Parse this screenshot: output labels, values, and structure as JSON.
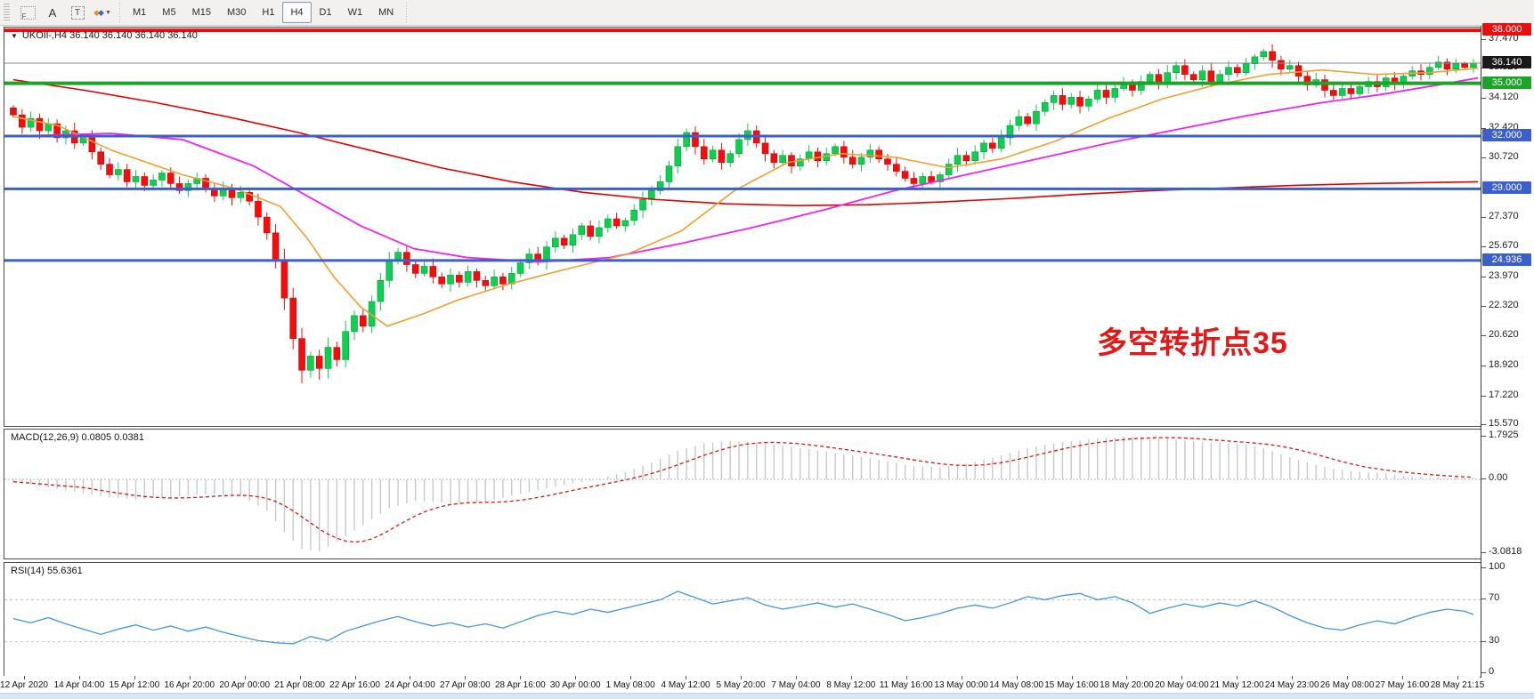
{
  "toolbar": {
    "icons": [
      {
        "name": "field-grid-icon",
        "glyph": "F"
      },
      {
        "name": "text-label-icon",
        "glyph": "A"
      },
      {
        "name": "text-box-icon",
        "glyph": "T"
      },
      {
        "name": "arrange-icon",
        "glyph": "diamonds"
      }
    ],
    "timeframes": [
      "M1",
      "M5",
      "M15",
      "M30",
      "H1",
      "H4",
      "D1",
      "W1",
      "MN"
    ],
    "active_timeframe": "H4"
  },
  "chart": {
    "title": "UKOIl-,H4  36.140 36.140 36.140 36.140",
    "annotation": {
      "text": "多空转折点35",
      "color": "#e51717"
    }
  },
  "chart_data": {
    "type": "candlestick",
    "symbol": "UKOIl-",
    "timeframe": "H4",
    "ohlc_current": "36.140 36.140 36.140 36.140",
    "current_price": 36.14,
    "price_axis": {
      "ticks": [
        "37.470",
        "35.820",
        "34.120",
        "32.420",
        "30.720",
        "27.370",
        "25.670",
        "23.970",
        "22.320",
        "20.620",
        "18.920",
        "17.220",
        "15.570"
      ],
      "special": [
        {
          "value": "38.000",
          "price": 38.0,
          "bg": "#ea0e0e"
        },
        {
          "value": "36.140",
          "price": 36.14,
          "bg": "#1a1a1a"
        },
        {
          "value": "35.000",
          "price": 35.0,
          "bg": "#1ca428"
        },
        {
          "value": "32.000",
          "price": 32.0,
          "bg": "#3c5fce"
        },
        {
          "value": "29.000",
          "price": 29.0,
          "bg": "#3c5fce"
        },
        {
          "value": "24.936",
          "price": 24.936,
          "bg": "#3c5fce"
        }
      ]
    },
    "hlines": [
      {
        "price": 38.0,
        "color": "#ea0e0e",
        "width": 4
      },
      {
        "price": 35.0,
        "color": "#1ca428",
        "width": 4
      },
      {
        "price": 32.0,
        "color": "#3c5fce",
        "width": 3
      },
      {
        "price": 29.0,
        "color": "#3c5fce",
        "width": 3
      },
      {
        "price": 24.936,
        "color": "#3c5fce",
        "width": 3
      }
    ],
    "candles": {
      "first_open": 33.6,
      "closes": [
        33.2,
        32.5,
        33.0,
        32.3,
        32.7,
        31.9,
        32.3,
        31.6,
        31.9,
        31.1,
        30.4,
        29.8,
        30.1,
        29.4,
        29.7,
        29.2,
        29.5,
        29.9,
        29.3,
        28.9,
        29.3,
        29.6,
        29.0,
        28.6,
        29.0,
        28.5,
        28.8,
        28.3,
        27.4,
        26.5,
        24.9,
        22.8,
        20.5,
        18.7,
        19.5,
        18.8,
        20.0,
        19.3,
        20.9,
        21.8,
        21.2,
        22.6,
        23.8,
        24.9,
        25.4,
        24.7,
        24.2,
        24.6,
        24.0,
        23.6,
        24.1,
        23.7,
        24.3,
        23.8,
        23.5,
        24.0,
        23.6,
        24.2,
        24.8,
        25.3,
        24.9,
        25.7,
        26.2,
        25.8,
        26.4,
        26.9,
        26.3,
        26.8,
        27.3,
        26.9,
        27.2,
        27.8,
        28.4,
        28.9,
        29.4,
        30.3,
        31.4,
        32.2,
        31.4,
        30.7,
        31.2,
        30.5,
        31.0,
        31.8,
        32.3,
        31.6,
        31.0,
        30.5,
        30.9,
        30.3,
        30.7,
        31.1,
        30.6,
        31.0,
        31.4,
        30.8,
        30.4,
        30.8,
        31.2,
        30.7,
        30.4,
        30.0,
        29.6,
        29.3,
        29.7,
        29.4,
        29.8,
        30.4,
        30.9,
        30.6,
        31.1,
        31.6,
        31.3,
        31.9,
        32.6,
        33.1,
        32.7,
        33.4,
        33.9,
        34.3,
        33.8,
        34.2,
        33.7,
        34.1,
        34.6,
        34.2,
        34.7,
        35.0,
        34.6,
        35.1,
        35.5,
        35.0,
        35.6,
        36.0,
        35.5,
        35.2,
        35.7,
        35.1,
        35.5,
        35.9,
        35.6,
        36.1,
        36.5,
        36.8,
        36.3,
        35.8,
        36.0,
        35.4,
        34.9,
        35.2,
        34.6,
        34.3,
        34.7,
        34.4,
        34.8,
        35.1,
        34.8,
        35.3,
        35.0,
        35.4,
        35.7,
        35.5,
        35.9,
        36.2,
        35.8,
        36.1,
        35.9,
        36.14
      ],
      "low_overrides": {
        "33": 17.95,
        "35": 18.15
      },
      "high_overrides": {
        "143": 36.95
      },
      "up_color": "#0fcf52",
      "up_border": "#089a3c",
      "down_color": "#f40d0d",
      "down_border": "#c40808"
    },
    "moving_averages": [
      {
        "name": "ma-slow-red",
        "color": "#e00000",
        "width": 1.6,
        "points": [
          [
            10,
            35.2
          ],
          [
            90,
            34.6
          ],
          [
            170,
            33.9
          ],
          [
            250,
            33.1
          ],
          [
            330,
            32.2
          ],
          [
            410,
            31.2
          ],
          [
            490,
            30.2
          ],
          [
            570,
            29.4
          ],
          [
            650,
            28.8
          ],
          [
            730,
            28.4
          ],
          [
            810,
            28.15
          ],
          [
            890,
            28.05
          ],
          [
            970,
            28.1
          ],
          [
            1050,
            28.25
          ],
          [
            1130,
            28.45
          ],
          [
            1210,
            28.7
          ],
          [
            1290,
            28.9
          ],
          [
            1370,
            29.05
          ],
          [
            1450,
            29.2
          ],
          [
            1530,
            29.3
          ],
          [
            1655,
            29.4
          ]
        ]
      },
      {
        "name": "ma-mid-magenta",
        "color": "#f321f3",
        "width": 1.8,
        "points": [
          [
            10,
            32.0
          ],
          [
            120,
            32.15
          ],
          [
            200,
            31.8
          ],
          [
            280,
            30.3
          ],
          [
            340,
            28.6
          ],
          [
            400,
            26.9
          ],
          [
            460,
            25.6
          ],
          [
            520,
            25.1
          ],
          [
            600,
            24.85
          ],
          [
            680,
            25.1
          ],
          [
            760,
            25.9
          ],
          [
            840,
            26.8
          ],
          [
            920,
            27.8
          ],
          [
            1000,
            28.9
          ],
          [
            1080,
            29.8
          ],
          [
            1160,
            30.7
          ],
          [
            1240,
            31.6
          ],
          [
            1320,
            32.4
          ],
          [
            1400,
            33.2
          ],
          [
            1480,
            33.9
          ],
          [
            1545,
            34.35
          ],
          [
            1610,
            34.9
          ],
          [
            1655,
            35.3
          ]
        ]
      },
      {
        "name": "ma-fast-orange",
        "color": "#f0a030",
        "width": 1.6,
        "points": [
          [
            10,
            33.1
          ],
          [
            60,
            32.6
          ],
          [
            120,
            31.2
          ],
          [
            200,
            29.8
          ],
          [
            260,
            29.0
          ],
          [
            310,
            28.0
          ],
          [
            340,
            26.2
          ],
          [
            370,
            24.0
          ],
          [
            400,
            22.3
          ],
          [
            430,
            21.2
          ],
          [
            470,
            21.9
          ],
          [
            510,
            22.7
          ],
          [
            560,
            23.5
          ],
          [
            620,
            24.3
          ],
          [
            700,
            25.3
          ],
          [
            760,
            26.6
          ],
          [
            820,
            28.9
          ],
          [
            880,
            30.5
          ],
          [
            940,
            31.0
          ],
          [
            1000,
            30.8
          ],
          [
            1060,
            30.2
          ],
          [
            1120,
            30.7
          ],
          [
            1180,
            31.7
          ],
          [
            1240,
            33.0
          ],
          [
            1300,
            34.1
          ],
          [
            1360,
            34.9
          ],
          [
            1420,
            35.5
          ],
          [
            1480,
            35.75
          ],
          [
            1540,
            35.5
          ],
          [
            1600,
            35.6
          ],
          [
            1655,
            35.85
          ]
        ]
      }
    ],
    "macd": {
      "label": "MACD(12,26,9) 0.0805 0.0381",
      "values_text": [
        "0.0805",
        "0.0381"
      ],
      "axis": [
        "1.7925",
        "0.00",
        "-3.0818"
      ],
      "bar_color": "#c9c9c9",
      "signal_color": "#e01414",
      "anchors": [
        [
          0,
          -0.1
        ],
        [
          5,
          -0.4
        ],
        [
          10,
          -0.7
        ],
        [
          14,
          -0.85
        ],
        [
          19,
          -0.7
        ],
        [
          23,
          -0.6
        ],
        [
          26,
          -0.7
        ],
        [
          29,
          -1.3
        ],
        [
          31,
          -2.2
        ],
        [
          33,
          -2.9
        ],
        [
          35,
          -3.0
        ],
        [
          37,
          -2.6
        ],
        [
          40,
          -1.9
        ],
        [
          43,
          -1.2
        ],
        [
          46,
          -0.9
        ],
        [
          50,
          -1.0
        ],
        [
          54,
          -0.95
        ],
        [
          58,
          -0.6
        ],
        [
          62,
          -0.3
        ],
        [
          66,
          -0.05
        ],
        [
          70,
          0.3
        ],
        [
          73,
          0.7
        ],
        [
          76,
          1.2
        ],
        [
          79,
          1.5
        ],
        [
          82,
          1.6
        ],
        [
          85,
          1.55
        ],
        [
          88,
          1.4
        ],
        [
          92,
          1.2
        ],
        [
          96,
          1.0
        ],
        [
          100,
          0.75
        ],
        [
          103,
          0.55
        ],
        [
          106,
          0.5
        ],
        [
          109,
          0.65
        ],
        [
          112,
          0.9
        ],
        [
          115,
          1.2
        ],
        [
          118,
          1.45
        ],
        [
          121,
          1.6
        ],
        [
          124,
          1.7
        ],
        [
          127,
          1.78
        ],
        [
          130,
          1.75
        ],
        [
          133,
          1.65
        ],
        [
          136,
          1.55
        ],
        [
          139,
          1.5
        ],
        [
          141,
          1.45
        ],
        [
          143,
          1.3
        ],
        [
          145,
          1.05
        ],
        [
          147,
          0.8
        ],
        [
          149,
          0.6
        ],
        [
          151,
          0.45
        ],
        [
          153,
          0.35
        ],
        [
          155,
          0.3
        ],
        [
          157,
          0.25
        ],
        [
          159,
          0.15
        ],
        [
          161,
          0.1
        ],
        [
          163,
          0.07
        ],
        [
          165,
          0.06
        ],
        [
          167,
          0.08
        ]
      ]
    },
    "rsi": {
      "label": "RSI(14) 55.6361",
      "value_text": "55.6361",
      "axis": [
        "100",
        "70",
        "30",
        "0"
      ],
      "levels": [
        70,
        30
      ],
      "line_color": "#4496e0",
      "anchors": [
        [
          0,
          52
        ],
        [
          2,
          48
        ],
        [
          4,
          53
        ],
        [
          6,
          47
        ],
        [
          8,
          42
        ],
        [
          10,
          37
        ],
        [
          12,
          42
        ],
        [
          14,
          46
        ],
        [
          16,
          41
        ],
        [
          18,
          45
        ],
        [
          20,
          40
        ],
        [
          22,
          44
        ],
        [
          24,
          39
        ],
        [
          26,
          35
        ],
        [
          28,
          31
        ],
        [
          30,
          29
        ],
        [
          32,
          28
        ],
        [
          34,
          35
        ],
        [
          36,
          31
        ],
        [
          38,
          40
        ],
        [
          40,
          45
        ],
        [
          42,
          50
        ],
        [
          44,
          54
        ],
        [
          46,
          49
        ],
        [
          48,
          45
        ],
        [
          50,
          48
        ],
        [
          52,
          44
        ],
        [
          54,
          47
        ],
        [
          56,
          43
        ],
        [
          58,
          49
        ],
        [
          60,
          55
        ],
        [
          62,
          59
        ],
        [
          64,
          56
        ],
        [
          66,
          61
        ],
        [
          68,
          58
        ],
        [
          70,
          62
        ],
        [
          72,
          66
        ],
        [
          74,
          70
        ],
        [
          76,
          78
        ],
        [
          78,
          72
        ],
        [
          80,
          66
        ],
        [
          82,
          69
        ],
        [
          84,
          72
        ],
        [
          86,
          65
        ],
        [
          88,
          61
        ],
        [
          90,
          64
        ],
        [
          92,
          67
        ],
        [
          94,
          63
        ],
        [
          96,
          66
        ],
        [
          98,
          61
        ],
        [
          100,
          56
        ],
        [
          102,
          50
        ],
        [
          104,
          53
        ],
        [
          106,
          57
        ],
        [
          108,
          62
        ],
        [
          110,
          65
        ],
        [
          112,
          62
        ],
        [
          114,
          67
        ],
        [
          116,
          73
        ],
        [
          118,
          70
        ],
        [
          120,
          74
        ],
        [
          122,
          76
        ],
        [
          124,
          70
        ],
        [
          126,
          73
        ],
        [
          128,
          67
        ],
        [
          130,
          57
        ],
        [
          132,
          62
        ],
        [
          134,
          66
        ],
        [
          136,
          63
        ],
        [
          138,
          67
        ],
        [
          140,
          64
        ],
        [
          142,
          69
        ],
        [
          144,
          63
        ],
        [
          146,
          55
        ],
        [
          148,
          48
        ],
        [
          150,
          43
        ],
        [
          152,
          41
        ],
        [
          154,
          46
        ],
        [
          156,
          50
        ],
        [
          158,
          47
        ],
        [
          160,
          53
        ],
        [
          162,
          58
        ],
        [
          164,
          61
        ],
        [
          166,
          59
        ],
        [
          167,
          56
        ]
      ]
    },
    "time_labels": [
      "12 Apr 2020",
      "14 Apr 04:00",
      "15 Apr 12:00",
      "16 Apr 20:00",
      "20 Apr 00:00",
      "21 Apr 08:00",
      "22 Apr 16:00",
      "24 Apr 04:00",
      "27 Apr 08:00",
      "28 Apr 16:00",
      "30 Apr 00:00",
      "1 May 08:00",
      "4 May 12:00",
      "5 May 20:00",
      "7 May 04:00",
      "8 May 12:00",
      "11 May 16:00",
      "13 May 00:00",
      "14 May 08:00",
      "15 May 16:00",
      "18 May 20:00",
      "20 May 04:00",
      "21 May 12:00",
      "24 May 23:00",
      "26 May 08:00",
      "27 May 16:00",
      "28 May 21:15"
    ]
  }
}
